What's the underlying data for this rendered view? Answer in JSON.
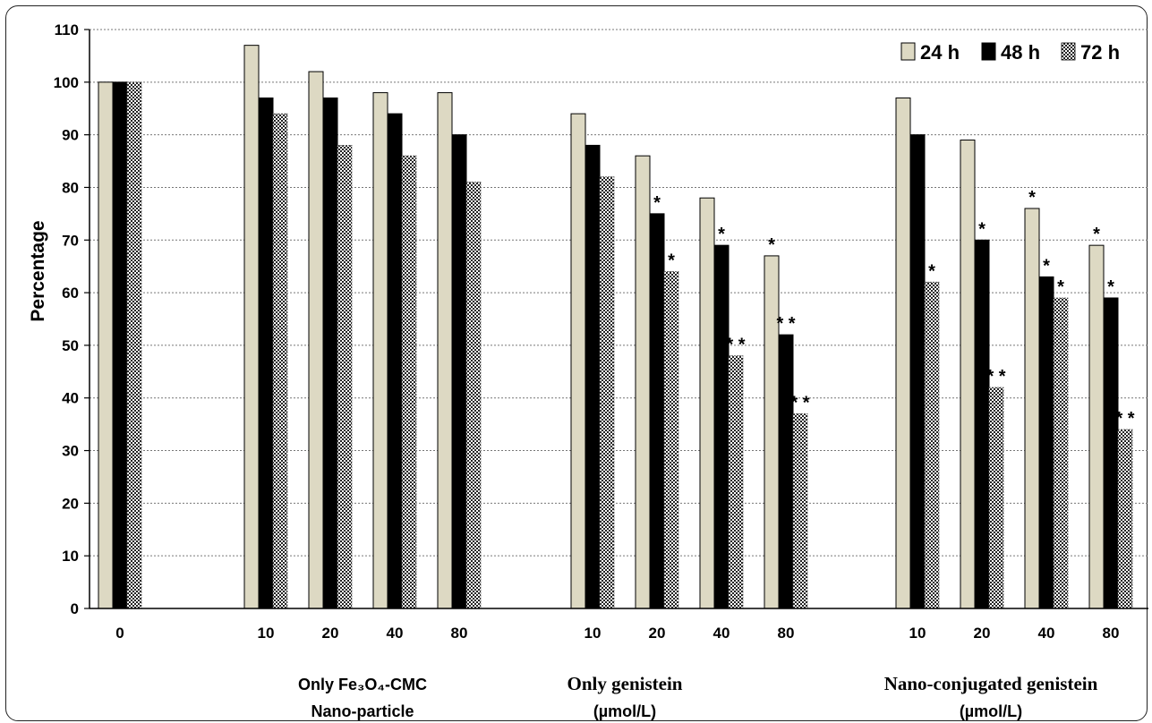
{
  "chart_data": {
    "type": "bar",
    "ylabel": "Percentage",
    "ylim": [
      0,
      110
    ],
    "yticks": [
      0,
      10,
      20,
      30,
      40,
      50,
      60,
      70,
      80,
      90,
      100,
      110
    ],
    "grid": "horizontal dotted",
    "legend_position": "top-right",
    "categories": [
      "0",
      "10",
      "20",
      "40",
      "80",
      "10",
      "20",
      "40",
      "80",
      "10",
      "20",
      "40",
      "80"
    ],
    "groups": [
      {
        "name_lines": [
          "Only Fe₃O₄-CMC",
          "Nano-particle"
        ],
        "style": "sans"
      },
      {
        "name_lines": [
          "Only genistein",
          "(µmol/L)"
        ],
        "style": "mixed"
      },
      {
        "name_lines": [
          "Nano-conjugated genistein",
          "(µmol/L)"
        ],
        "style": "mixed"
      }
    ],
    "series": [
      {
        "name": "24 h",
        "color": "#ddd9c3",
        "values": [
          100,
          107,
          102,
          98,
          98,
          94,
          86,
          78,
          67,
          97,
          89,
          76,
          69
        ],
        "labels": [
          "",
          "",
          "",
          "",
          "",
          "",
          "",
          "",
          "*",
          "",
          "",
          "*",
          "*"
        ]
      },
      {
        "name": "48 h",
        "color": "#000000",
        "values": [
          100,
          97,
          97,
          94,
          90,
          88,
          75,
          69,
          52,
          90,
          70,
          63,
          59
        ],
        "labels": [
          "",
          "",
          "",
          "",
          "",
          "",
          "*",
          "*",
          "**",
          "",
          "*",
          "*",
          "*"
        ]
      },
      {
        "name": "72 h",
        "color": "pattern",
        "values": [
          100,
          94,
          88,
          86,
          81,
          82,
          64,
          48,
          37,
          62,
          42,
          59,
          34
        ],
        "labels": [
          "",
          "",
          "",
          "",
          "",
          "",
          "*",
          "**",
          "**",
          "*",
          "**",
          "*",
          "**"
        ]
      }
    ]
  }
}
